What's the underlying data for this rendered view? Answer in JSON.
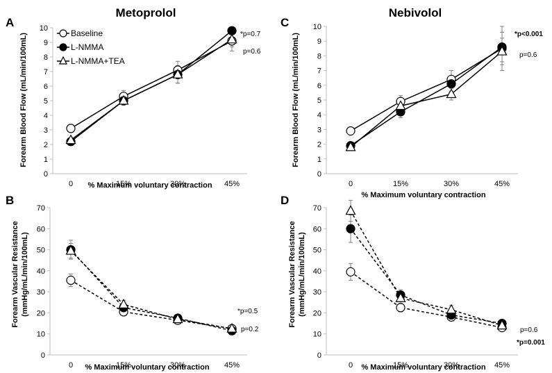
{
  "colors": {
    "baseline": "#ffffff",
    "lnmma": "#000000",
    "lnmma_tea": "#ffffff",
    "stroke": "#000000",
    "errorbar": "#7f7f7f",
    "axis": "#bfbfbf"
  },
  "legend": {
    "items": [
      {
        "label": "Baseline",
        "marker": "circle-open"
      },
      {
        "label": "L-NMMA",
        "marker": "circle-filled"
      },
      {
        "label": "L-NMMA+TEA",
        "marker": "triangle-open"
      }
    ]
  },
  "chart_data": [
    {
      "panel": "A",
      "type": "line",
      "title": "Metoprolol",
      "xlabel": "% Maximum voluntary contraction",
      "ylabel": "Forearm Blood Flow (mL/min/100mL)",
      "ylabel_lines": [
        "Forearm Blood Flow (mL/min/100mL)"
      ],
      "categories": [
        "0",
        "15%",
        "30%",
        "45%"
      ],
      "ylim": [
        0,
        10
      ],
      "yticks": [
        0,
        1,
        2,
        3,
        4,
        5,
        6,
        7,
        8,
        9,
        10
      ],
      "line_style": "solid",
      "series": [
        {
          "name": "Baseline",
          "values": [
            3.1,
            5.3,
            7.1,
            9.1
          ],
          "errors": [
            0.0,
            0.4,
            0.6,
            0.7
          ]
        },
        {
          "name": "L-NMMA",
          "values": [
            2.2,
            5.0,
            6.8,
            9.8
          ],
          "errors": [
            0.0,
            0.3,
            0.6,
            0.0
          ]
        },
        {
          "name": "L-NMMA+TEA",
          "values": [
            2.3,
            5.0,
            6.8,
            9.2
          ],
          "errors": [
            0.0,
            0.3,
            0.6,
            0.5
          ]
        }
      ],
      "annotations": [
        {
          "text": "*p=0.7",
          "bold": false
        },
        {
          "text": "p=0.6",
          "bold": false
        }
      ]
    },
    {
      "panel": "C",
      "type": "line",
      "title": "Nebivolol",
      "xlabel": "% Maximum voluntary contraction",
      "ylabel": "Forearm Blood Flow (mL/min/100mL)",
      "ylabel_lines": [
        "Forearm Blood Flow (mL/min/100mL)"
      ],
      "categories": [
        "0",
        "15%",
        "30%",
        "45%"
      ],
      "ylim": [
        0,
        10
      ],
      "yticks": [
        0,
        1,
        2,
        3,
        4,
        5,
        6,
        7,
        8,
        9,
        10
      ],
      "line_style": "solid",
      "series": [
        {
          "name": "Baseline",
          "values": [
            2.9,
            4.9,
            6.4,
            8.5
          ],
          "errors": [
            0.0,
            0.4,
            0.6,
            1.5
          ]
        },
        {
          "name": "L-NMMA",
          "values": [
            1.9,
            4.2,
            6.1,
            8.6
          ],
          "errors": [
            0.0,
            0.4,
            0.5,
            1.0
          ]
        },
        {
          "name": "L-NMMA+TEA",
          "values": [
            1.8,
            4.6,
            5.4,
            8.3
          ],
          "errors": [
            0.0,
            0.3,
            0.4,
            0.9
          ]
        }
      ],
      "annotations": [
        {
          "text": "*p<0.001",
          "bold": true
        },
        {
          "text": "p=0.6",
          "bold": false
        }
      ]
    },
    {
      "panel": "B",
      "type": "line",
      "title": "",
      "xlabel": "% Maximum voluntary contraction",
      "ylabel": "Forearm Vascular Resistance (mmHg/mL/min/100mL)",
      "ylabel_lines": [
        "Forearm Vascular Resistance",
        "(mmHg/mL/min/100mL)"
      ],
      "categories": [
        "0",
        "15%",
        "30%",
        "45%"
      ],
      "ylim": [
        0,
        70
      ],
      "yticks": [
        0,
        10,
        20,
        30,
        40,
        50,
        60,
        70
      ],
      "line_style": "dashed",
      "series": [
        {
          "name": "Baseline",
          "values": [
            35.5,
            20.5,
            16.5,
            12.5
          ],
          "errors": [
            3.0,
            1.5,
            1.5,
            1.0
          ]
        },
        {
          "name": "L-NMMA",
          "values": [
            50.0,
            22.5,
            17.5,
            11.5
          ],
          "errors": [
            4.5,
            2.0,
            1.5,
            1.0
          ]
        },
        {
          "name": "L-NMMA+TEA",
          "values": [
            49.5,
            24.0,
            17.0,
            12.5
          ],
          "errors": [
            3.5,
            2.0,
            1.5,
            1.0
          ]
        }
      ],
      "annotations": [
        {
          "text": "*p=0.5",
          "bold": false
        },
        {
          "text": "p=0.2",
          "bold": false
        }
      ]
    },
    {
      "panel": "D",
      "type": "line",
      "title": "",
      "xlabel": "% Maximum voluntary contraction",
      "ylabel": "Forearm Vascular Resistance (mmHg/mL/min/100mL)",
      "ylabel_lines": [
        "Forearm Vascular Resistance",
        "(mmHg/mL/min/100mL)"
      ],
      "categories": [
        "0",
        "15%",
        "30%",
        "45%"
      ],
      "ylim": [
        0,
        70
      ],
      "yticks": [
        0,
        10,
        20,
        30,
        40,
        50,
        60,
        70
      ],
      "line_style": "dashed",
      "series": [
        {
          "name": "Baseline",
          "values": [
            39.5,
            22.5,
            18.0,
            13.0
          ],
          "errors": [
            4.0,
            2.0,
            1.5,
            1.0
          ]
        },
        {
          "name": "L-NMMA",
          "values": [
            60.0,
            28.5,
            19.0,
            15.0
          ],
          "errors": [
            6.5,
            2.5,
            1.5,
            1.0
          ]
        },
        {
          "name": "L-NMMA+TEA",
          "values": [
            68.5,
            27.0,
            21.5,
            14.0
          ],
          "errors": [
            5.0,
            2.5,
            2.0,
            1.0
          ]
        }
      ],
      "annotations": [
        {
          "text": "p=0.6",
          "bold": false
        },
        {
          "text": "*p=0.001",
          "bold": true
        }
      ]
    }
  ]
}
